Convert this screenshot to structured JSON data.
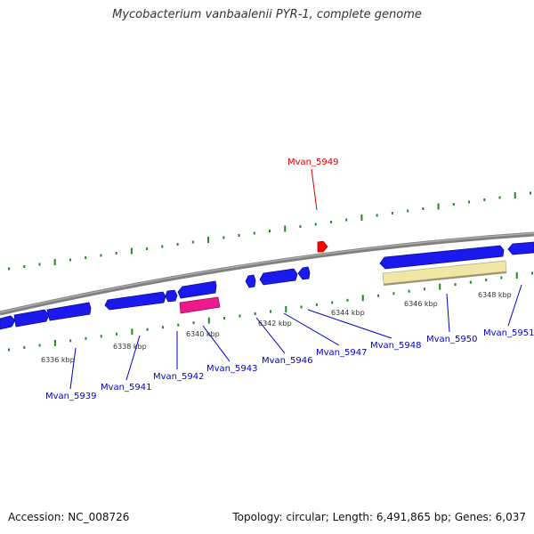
{
  "title": "Mycobacterium vanbaalenii PYR-1, complete genome",
  "accession": "Accession: NC_008726",
  "summary": "Topology: circular; Length: 6,491,865 bp; Genes: 6,037",
  "colors": {
    "forward_gene": "#1a1aee",
    "highlight_gene": "#ff0000",
    "pink_gene": "#ee1a8c",
    "other_feature": "#f0e6a6",
    "backbone": "#808080",
    "tick": "#1f8a1f",
    "label_default": "#0000cc",
    "label_highlight": "#dd0000"
  },
  "kbp_ticks": [
    "6336 kbp",
    "6338 kbp",
    "6340 kbp",
    "6342 kbp",
    "6344 kbp",
    "6346 kbp",
    "6348 kbp"
  ],
  "gene_labels": [
    {
      "id": "Mvan_5939",
      "color": "label_default"
    },
    {
      "id": "Mvan_5941",
      "color": "label_default"
    },
    {
      "id": "Mvan_5942",
      "color": "label_default"
    },
    {
      "id": "Mvan_5943",
      "color": "label_default"
    },
    {
      "id": "Mvan_5946",
      "color": "label_default"
    },
    {
      "id": "Mvan_5947",
      "color": "label_default"
    },
    {
      "id": "Mvan_5948",
      "color": "label_default"
    },
    {
      "id": "Mvan_5950",
      "color": "label_default"
    },
    {
      "id": "Mvan_5951",
      "color": "label_default"
    },
    {
      "id": "Mvan_5949",
      "color": "label_highlight"
    }
  ]
}
